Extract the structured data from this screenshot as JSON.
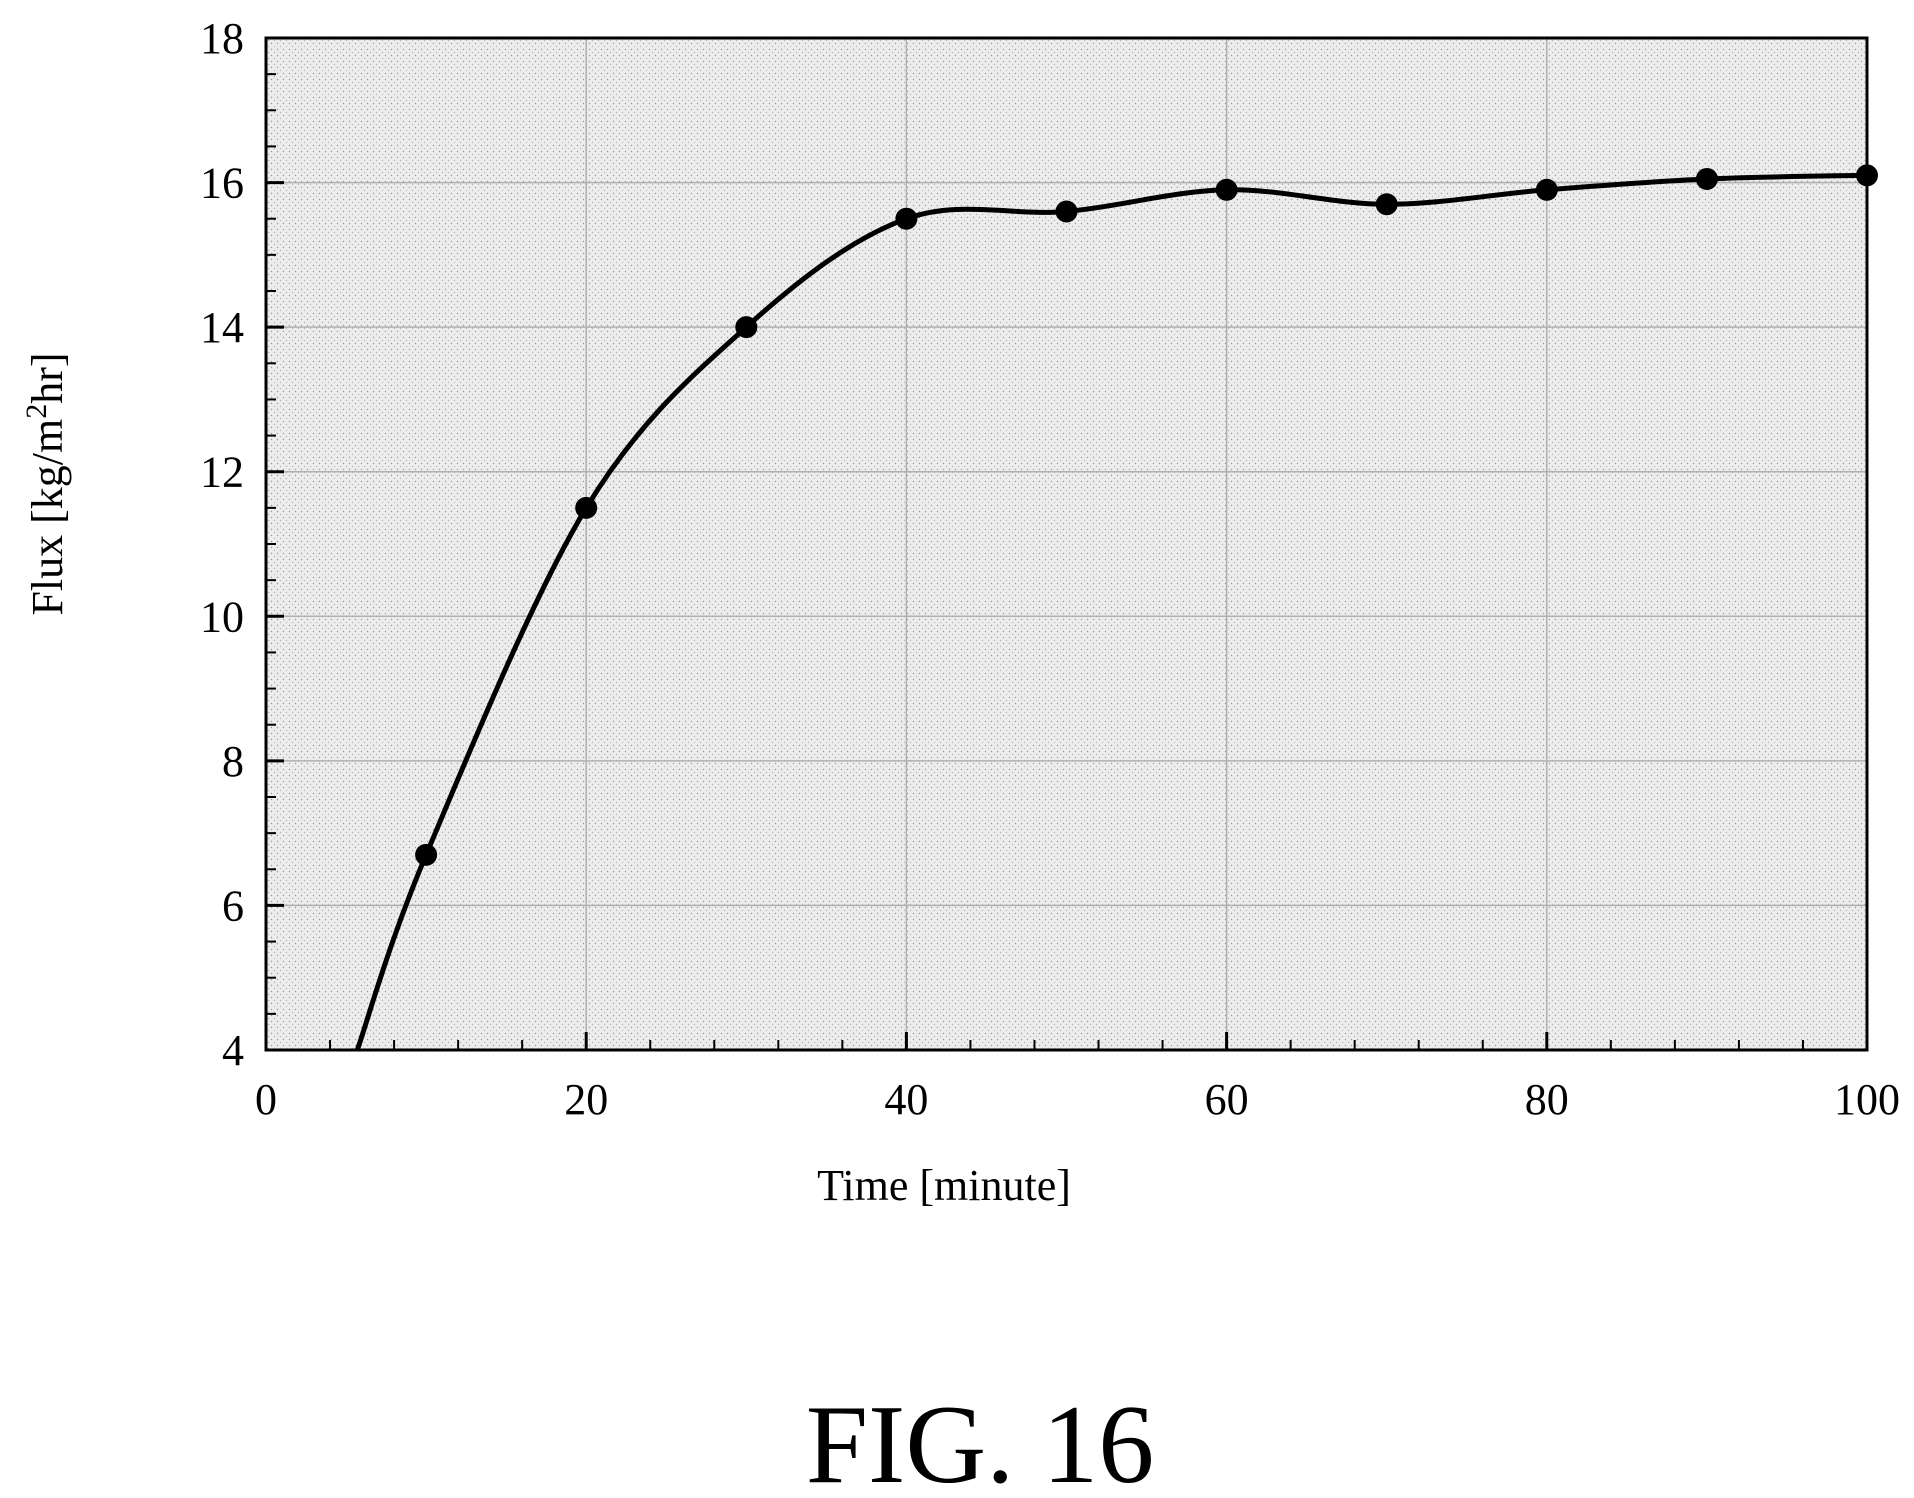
{
  "chart_data": {
    "type": "line",
    "title": "",
    "xlabel": "Time [minute]",
    "ylabel": {
      "prefix": "Flux [kg/m",
      "superscript": "2",
      "suffix": "hr]"
    },
    "xlim": [
      0,
      100
    ],
    "ylim": [
      4,
      18
    ],
    "xticks": [
      "0",
      "20",
      "40",
      "60",
      "80",
      "100"
    ],
    "yticks": [
      "4",
      "6",
      "8",
      "10",
      "12",
      "14",
      "16",
      "18"
    ],
    "grid": true,
    "legend": "none",
    "series": [
      {
        "x": [
          10,
          20,
          30,
          40,
          50,
          60,
          70,
          80,
          90,
          100
        ],
        "y": [
          6.7,
          11.5,
          14.0,
          15.5,
          15.6,
          15.9,
          15.7,
          15.9,
          16.05,
          16.1
        ]
      }
    ],
    "line_start": {
      "x": 5.7,
      "y": 4.0
    },
    "colors": {
      "line": "#000000",
      "marker": "#000000",
      "plot_fill": "#ececec",
      "grid": "#b0b0b0"
    }
  },
  "caption": "FIG. 16"
}
